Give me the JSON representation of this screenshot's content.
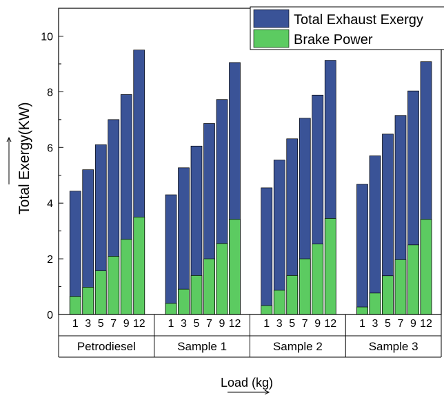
{
  "chart_data": {
    "type": "bar",
    "stacked": "overlay",
    "groups": [
      "Petrodiesel",
      "Sample 1",
      "Sample 2",
      "Sample 3"
    ],
    "categories": [
      "1",
      "3",
      "5",
      "7",
      "9",
      "12"
    ],
    "series": [
      {
        "name": "Total Exhaust Exergy",
        "color": "#3a5397",
        "values": [
          [
            4.43,
            5.2,
            6.1,
            7.0,
            7.9,
            9.5
          ],
          [
            4.3,
            5.27,
            6.05,
            6.86,
            7.72,
            9.05
          ],
          [
            4.55,
            5.55,
            6.31,
            7.05,
            7.88,
            9.13
          ],
          [
            4.68,
            5.7,
            6.48,
            7.15,
            8.03,
            9.08
          ]
        ]
      },
      {
        "name": "Brake Power",
        "color": "#5ccb61",
        "values": [
          [
            0.65,
            0.98,
            1.57,
            2.09,
            2.7,
            3.5
          ],
          [
            0.4,
            0.91,
            1.4,
            2.0,
            2.55,
            3.42
          ],
          [
            0.32,
            0.87,
            1.4,
            2.0,
            2.53,
            3.45
          ],
          [
            0.27,
            0.77,
            1.39,
            1.97,
            2.5,
            3.42
          ]
        ]
      }
    ],
    "y_ticks": [
      "0",
      "2",
      "4",
      "6",
      "8",
      "10"
    ],
    "ylim": [
      0,
      11
    ],
    "ylabel": "Total Exergy(KW)",
    "xlabel": "Load (kg)",
    "legend_position": "top-right",
    "grid": false
  }
}
